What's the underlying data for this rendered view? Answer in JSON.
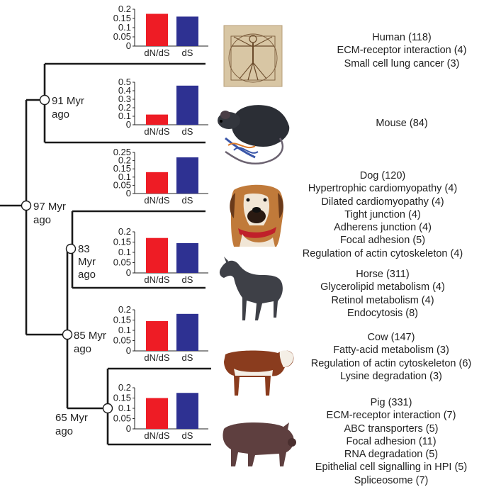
{
  "colors": {
    "dn_ds": "#ee1c25",
    "ds": "#2e3192",
    "branch": "#1a1a1a"
  },
  "nodes": {
    "root": {
      "label_line1": "97 Myr",
      "label_line2": "ago"
    },
    "human_mouse": {
      "label_line1": "91 Myr",
      "label_line2": "ago"
    },
    "dog_horse": {
      "label_line1": "83",
      "label_line2": "Myr",
      "label_line3": "ago"
    },
    "laurasiatheria": {
      "label_line1": "85 Myr",
      "label_line2": "ago"
    },
    "cow_pig": {
      "label_line1": "65 Myr",
      "label_line2": "ago"
    }
  },
  "species": {
    "human": {
      "title": "Human (118)",
      "pathways": [
        "ECM-receptor interaction (4)",
        "Small cell lung cancer (3)"
      ],
      "image_icon": "vitruvian-man-icon"
    },
    "mouse": {
      "title": "Mouse (84)",
      "pathways": [],
      "image_icon": "mouse-icon"
    },
    "dog": {
      "title": "Dog (120)",
      "pathways": [
        "Hypertrophic cardiomyopathy (4)",
        "Dilated cardiomyopathy (4)",
        "Tight junction (4)",
        "Adherens junction (4)",
        "Focal adhesion (5)",
        "Regulation of actin cytoskeleton (4)"
      ],
      "image_icon": "dog-icon"
    },
    "horse": {
      "title": "Horse (311)",
      "pathways": [
        "Glycerolipid metabolism (4)",
        "Retinol metabolism (4)",
        "Endocytosis (8)"
      ],
      "image_icon": "horse-icon"
    },
    "cow": {
      "title": "Cow (147)",
      "pathways": [
        "Fatty-acid metabolism (3)",
        "Regulation of actin cytoskeleton (6)",
        "Lysine degradation (3)"
      ],
      "image_icon": "cow-icon"
    },
    "pig": {
      "title": "Pig (331)",
      "pathways": [
        "ECM-receptor interaction (7)",
        "ABC transporters (5)",
        "Focal adhesion (11)",
        "RNA degradation (5)",
        "Epithelial cell signalling in HPI (5)",
        "Spliceosome (7)"
      ],
      "image_icon": "pig-icon"
    }
  },
  "chart_data": [
    {
      "type": "bar",
      "branch": "human",
      "categories": [
        "dN/dS",
        "dS"
      ],
      "values": [
        0.175,
        0.16
      ],
      "yticks": [
        0,
        0.05,
        0.1,
        0.15,
        0.2
      ],
      "ytick_labels": [
        "0",
        "0.05",
        "0.1",
        "0.15",
        "0.2"
      ],
      "ylim": [
        0,
        0.2
      ]
    },
    {
      "type": "bar",
      "branch": "mouse",
      "categories": [
        "dN/dS",
        "dS"
      ],
      "values": [
        0.12,
        0.46
      ],
      "yticks": [
        0,
        0.1,
        0.2,
        0.3,
        0.4,
        0.5
      ],
      "ytick_labels": [
        "0",
        "0.1",
        "0.2",
        "0.3",
        "0.4",
        "0.5"
      ],
      "ylim": [
        0,
        0.5
      ]
    },
    {
      "type": "bar",
      "branch": "dog",
      "categories": [
        "dN/dS",
        "dS"
      ],
      "values": [
        0.13,
        0.22
      ],
      "yticks": [
        0,
        0.05,
        0.1,
        0.15,
        0.2,
        0.25
      ],
      "ytick_labels": [
        "0",
        "0.05",
        "0.1",
        "0.15",
        "0.2",
        "0.25"
      ],
      "ylim": [
        0,
        0.25
      ]
    },
    {
      "type": "bar",
      "branch": "horse",
      "categories": [
        "dN/dS",
        "dS"
      ],
      "values": [
        0.17,
        0.145
      ],
      "yticks": [
        0,
        0.05,
        0.1,
        0.15,
        0.2
      ],
      "ytick_labels": [
        "0",
        "0.05",
        "0.1",
        "0.15",
        "0.2"
      ],
      "ylim": [
        0,
        0.2
      ]
    },
    {
      "type": "bar",
      "branch": "cow",
      "categories": [
        "dN/dS",
        "dS"
      ],
      "values": [
        0.145,
        0.18
      ],
      "yticks": [
        0,
        0.05,
        0.1,
        0.15,
        0.2
      ],
      "ytick_labels": [
        "0",
        "0.05",
        "0.1",
        "0.15",
        "0.2"
      ],
      "ylim": [
        0,
        0.2
      ]
    },
    {
      "type": "bar",
      "branch": "pig",
      "categories": [
        "dN/dS",
        "dS"
      ],
      "values": [
        0.15,
        0.175
      ],
      "yticks": [
        0,
        0.05,
        0.1,
        0.15,
        0.2
      ],
      "ytick_labels": [
        "0",
        "0.05",
        "0.1",
        "0.15",
        "0.2"
      ],
      "ylim": [
        0,
        0.2
      ]
    }
  ]
}
